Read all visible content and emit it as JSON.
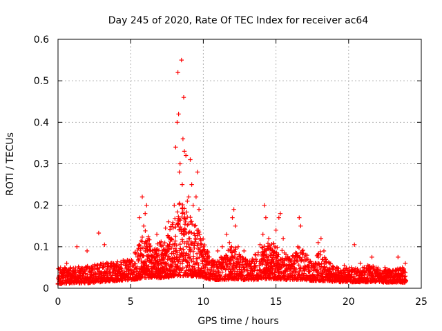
{
  "chart_data": {
    "type": "scatter",
    "title": "Day 245 of 2020, Rate Of TEC Index for receiver ac64",
    "xlabel": "GPS time / hours",
    "ylabel": "ROTI / TECUs",
    "xlim": [
      0,
      25
    ],
    "ylim": [
      0,
      0.6
    ],
    "xticks": [
      0,
      5,
      10,
      15,
      20,
      25
    ],
    "yticks": [
      0,
      0.1,
      0.2,
      0.3,
      0.4,
      0.5,
      0.6
    ],
    "xtick_labels": [
      "0",
      "5",
      "10",
      "15",
      "20",
      "25"
    ],
    "ytick_labels": [
      "0",
      "0.1",
      "0.2",
      "0.3",
      "0.4",
      "0.5",
      "0.6"
    ],
    "grid": true,
    "marker": "+",
    "color": "#ff0000",
    "series": [
      {
        "name": "ROTI",
        "x": [
          0.1,
          0.3,
          0.6,
          0.9,
          1.2,
          1.3,
          1.6,
          1.9,
          2.0,
          2.3,
          2.7,
          2.8,
          3.1,
          3.2,
          3.6,
          4.0,
          4.3,
          4.6,
          5.0,
          5.3,
          5.6,
          5.8,
          5.9,
          6.0,
          6.1,
          6.2,
          6.3,
          6.5,
          6.8,
          7.0,
          7.2,
          7.4,
          7.6,
          7.8,
          8.0,
          8.1,
          8.2,
          8.25,
          8.3,
          8.35,
          8.4,
          8.5,
          8.55,
          8.6,
          8.65,
          8.7,
          8.8,
          8.9,
          9.0,
          9.1,
          9.2,
          9.3,
          9.4,
          9.5,
          9.6,
          9.7,
          9.8,
          10.0,
          10.3,
          10.6,
          11.0,
          11.3,
          11.6,
          11.8,
          12.0,
          12.1,
          12.2,
          12.4,
          12.8,
          13.2,
          13.6,
          13.9,
          14.1,
          14.2,
          14.3,
          14.5,
          14.8,
          15.0,
          15.2,
          15.3,
          15.5,
          15.9,
          16.2,
          16.5,
          16.6,
          16.7,
          16.8,
          17.2,
          17.6,
          17.9,
          18.1,
          18.3,
          18.7,
          19.2,
          19.7,
          20.2,
          20.4,
          20.8,
          21.3,
          21.6,
          22.0,
          22.5,
          22.9,
          23.2,
          23.4,
          23.7,
          23.9
        ],
        "y": [
          0.03,
          0.045,
          0.06,
          0.035,
          0.03,
          0.1,
          0.045,
          0.05,
          0.09,
          0.04,
          0.045,
          0.133,
          0.05,
          0.105,
          0.06,
          0.055,
          0.05,
          0.065,
          0.06,
          0.085,
          0.17,
          0.22,
          0.15,
          0.18,
          0.2,
          0.12,
          0.1,
          0.09,
          0.13,
          0.11,
          0.09,
          0.145,
          0.16,
          0.12,
          0.2,
          0.34,
          0.4,
          0.52,
          0.42,
          0.28,
          0.3,
          0.55,
          0.25,
          0.36,
          0.46,
          0.33,
          0.32,
          0.21,
          0.22,
          0.31,
          0.25,
          0.2,
          0.15,
          0.22,
          0.28,
          0.19,
          0.12,
          0.1,
          0.07,
          0.055,
          0.09,
          0.1,
          0.13,
          0.11,
          0.17,
          0.19,
          0.15,
          0.1,
          0.09,
          0.06,
          0.08,
          0.105,
          0.13,
          0.2,
          0.17,
          0.12,
          0.09,
          0.14,
          0.17,
          0.18,
          0.12,
          0.07,
          0.06,
          0.1,
          0.17,
          0.15,
          0.09,
          0.07,
          0.06,
          0.11,
          0.12,
          0.09,
          0.06,
          0.05,
          0.055,
          0.045,
          0.105,
          0.06,
          0.055,
          0.075,
          0.045,
          0.05,
          0.04,
          0.035,
          0.075,
          0.05,
          0.06
        ]
      }
    ],
    "envelope": {
      "x": [
        0,
        1,
        2,
        3,
        4,
        5,
        5.5,
        6,
        6.5,
        7,
        7.5,
        8,
        8.5,
        9,
        9.5,
        10,
        10.5,
        11,
        11.5,
        12,
        12.5,
        13,
        13.5,
        14,
        14.5,
        15,
        15.5,
        16,
        16.5,
        17,
        17.5,
        18,
        18.5,
        19,
        19.5,
        20,
        20.5,
        21,
        21.5,
        22,
        22.5,
        23,
        23.5,
        24
      ],
      "upper": [
        0.05,
        0.05,
        0.055,
        0.06,
        0.065,
        0.07,
        0.1,
        0.14,
        0.1,
        0.11,
        0.12,
        0.18,
        0.22,
        0.18,
        0.15,
        0.12,
        0.07,
        0.065,
        0.09,
        0.11,
        0.08,
        0.07,
        0.08,
        0.1,
        0.11,
        0.11,
        0.09,
        0.07,
        0.1,
        0.09,
        0.06,
        0.09,
        0.07,
        0.055,
        0.05,
        0.05,
        0.05,
        0.05,
        0.055,
        0.05,
        0.045,
        0.045,
        0.05,
        0.045
      ],
      "lower": [
        0.01,
        0.012,
        0.012,
        0.015,
        0.018,
        0.02,
        0.022,
        0.025,
        0.025,
        0.025,
        0.025,
        0.03,
        0.03,
        0.03,
        0.028,
        0.025,
        0.02,
        0.02,
        0.02,
        0.022,
        0.02,
        0.02,
        0.02,
        0.022,
        0.022,
        0.022,
        0.02,
        0.02,
        0.02,
        0.02,
        0.018,
        0.018,
        0.017,
        0.015,
        0.015,
        0.015,
        0.015,
        0.015,
        0.015,
        0.015,
        0.014,
        0.014,
        0.014,
        0.014
      ]
    }
  }
}
